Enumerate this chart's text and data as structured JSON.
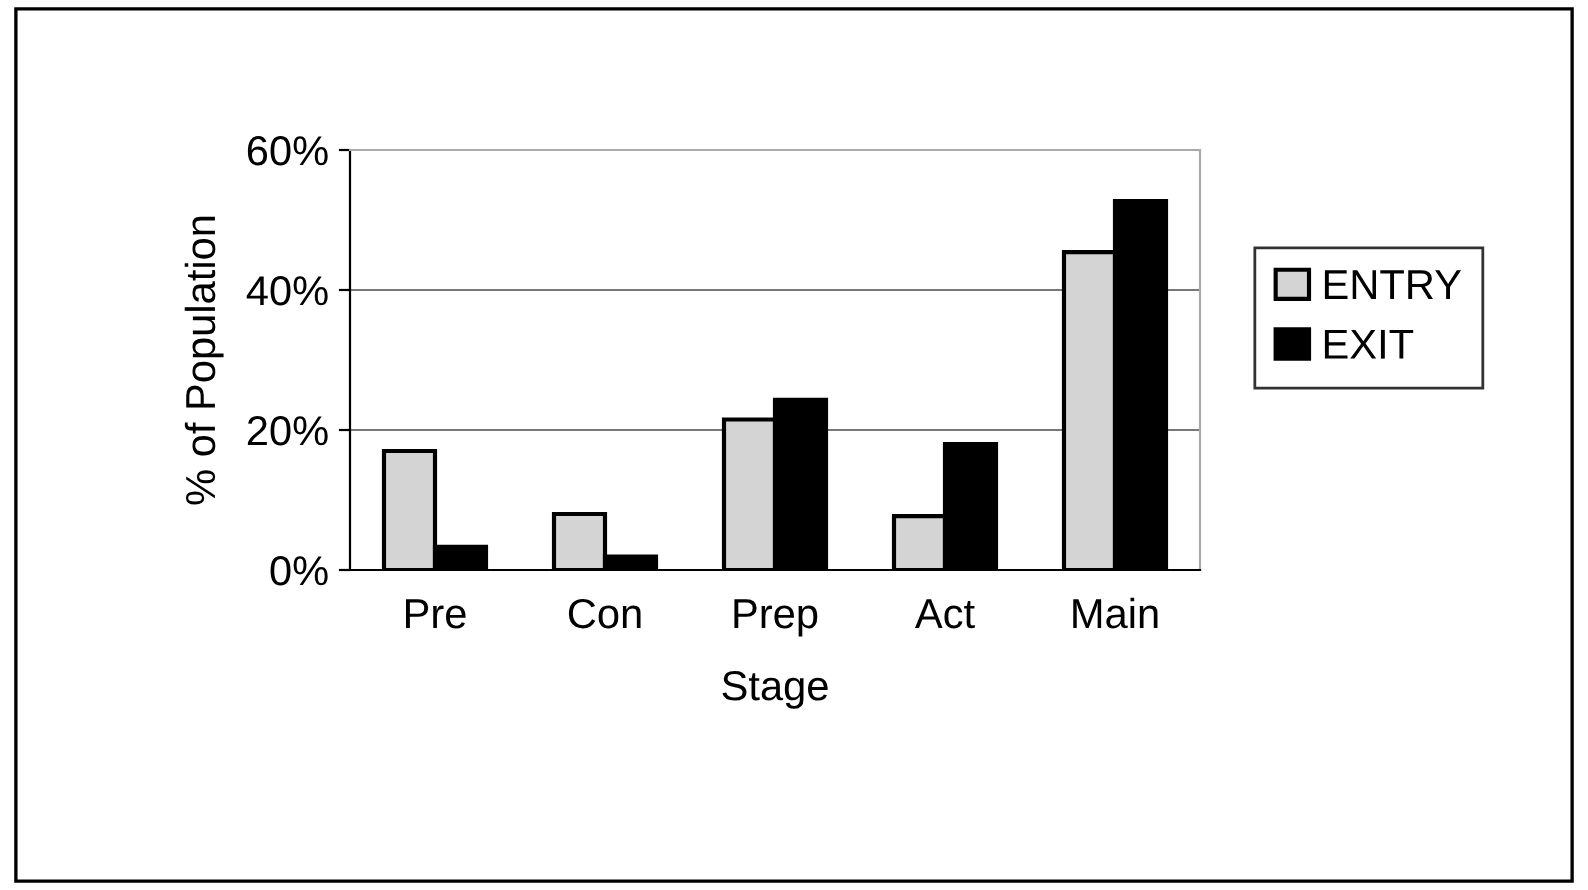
{
  "chart_data": {
    "type": "bar",
    "xlabel": "Stage",
    "ylabel": "% of Population",
    "categories": [
      "Pre",
      "Con",
      "Prep",
      "Act",
      "Main"
    ],
    "series": [
      {
        "name": "ENTRY",
        "color": "#d4d4d4",
        "values": [
          17,
          8,
          21.5,
          7.7,
          45.4
        ]
      },
      {
        "name": "EXIT",
        "color": "#000000",
        "values": [
          3.3,
          1.9,
          24.3,
          18,
          52.7
        ]
      }
    ],
    "ylim": [
      0,
      60
    ],
    "yticks": [
      {
        "value": 0,
        "label": "0%"
      },
      {
        "value": 20,
        "label": "20%"
      },
      {
        "value": 40,
        "label": "40%"
      },
      {
        "value": 60,
        "label": "60%"
      }
    ],
    "grid": "y",
    "legend": "right"
  }
}
